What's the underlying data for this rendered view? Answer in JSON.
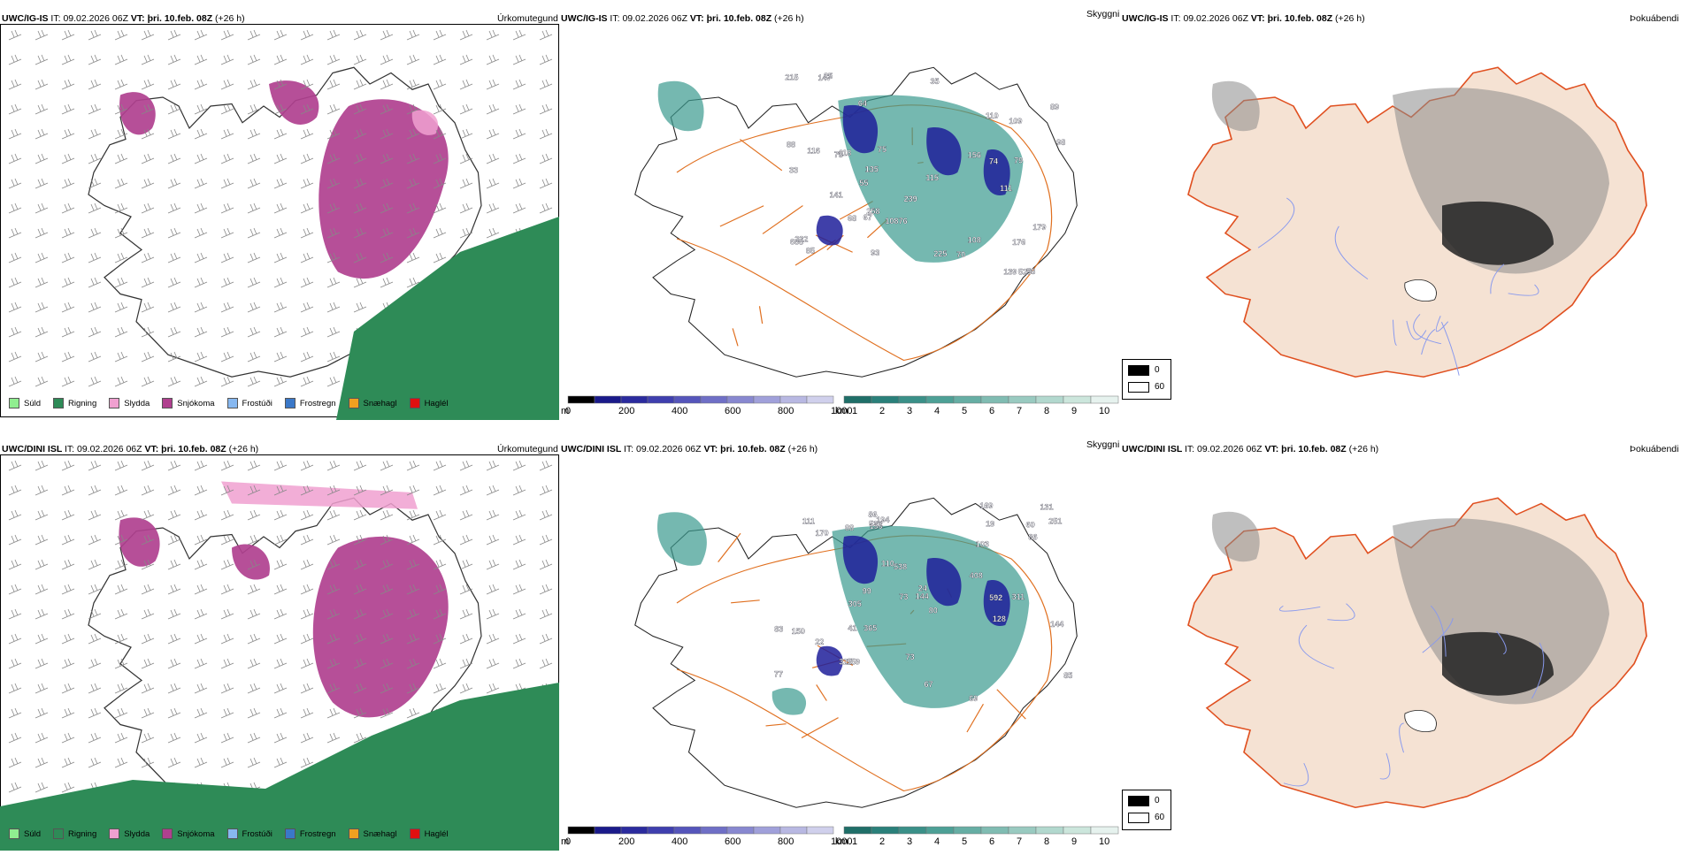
{
  "rows": [
    {
      "model": "UWC/IG-IS",
      "it_label": "IT:",
      "it_value": "09.02.2026 06Z",
      "vt_label": "VT:",
      "vt_value": "þri. 10.feb. 08Z",
      "lead": "(+26 h)"
    },
    {
      "model": "UWC/DINI ISL",
      "it_label": "IT:",
      "it_value": "09.02.2026 06Z",
      "vt_label": "VT:",
      "vt_value": "þri. 10.feb. 08Z",
      "lead": "(+26 h)"
    }
  ],
  "panels": {
    "precip_type": "Úrkomutegund",
    "visibility": "Skyggni",
    "fog": "Þokuábendi"
  },
  "precip_legend": [
    {
      "label": "Súld",
      "color": "#90ee90"
    },
    {
      "label": "Rigning",
      "color": "#2e8b57"
    },
    {
      "label": "Slydda",
      "color": "#f0a0d0"
    },
    {
      "label": "Snjókoma",
      "color": "#b0408f"
    },
    {
      "label": "Frostúði",
      "color": "#87b8f0"
    },
    {
      "label": "Frostregn",
      "color": "#3a78c8"
    },
    {
      "label": "Snæhagl",
      "color": "#f0a020"
    },
    {
      "label": "Haglél",
      "color": "#e01010"
    }
  ],
  "vis_m_scale": {
    "unit": "m",
    "ticks": [
      "0",
      "200",
      "400",
      "600",
      "800",
      "1000"
    ]
  },
  "vis_km_scale": {
    "unit": "km",
    "ticks": [
      "1",
      "2",
      "3",
      "4",
      "5",
      "6",
      "7",
      "8",
      "9",
      "10"
    ]
  },
  "fog_scale": {
    "ticks": [
      "0",
      "60"
    ]
  },
  "colors": {
    "snow": "#b0408f",
    "rain": "#2e8b57",
    "sleet": "#f0a0d0",
    "land_fog": "#f5e2d3",
    "roads": "#e07020",
    "vis_teal": "#3a9a8e",
    "vis_blue": "#1e1e9a"
  },
  "vis_labels": {
    "top": [
      "239",
      "78",
      "147",
      "111",
      "58",
      "64",
      "76",
      "55",
      "67",
      "74",
      "79",
      "35",
      "215",
      "139",
      "135",
      "108",
      "115",
      "98",
      "89",
      "75",
      "529",
      "418",
      "70",
      "68",
      "176",
      "156",
      "225",
      "222",
      "109",
      "685",
      "258",
      "108",
      "85",
      "179",
      "110",
      "88",
      "116",
      "25",
      "141",
      "93",
      "33"
    ],
    "bottom": [
      "144",
      "83",
      "111",
      "99",
      "69",
      "86",
      "77",
      "85",
      "128",
      "131",
      "365",
      "150",
      "110",
      "144",
      "22",
      "169",
      "88",
      "86",
      "305",
      "80",
      "251",
      "194",
      "170",
      "155",
      "532",
      "538",
      "311",
      "67",
      "408",
      "592",
      "159",
      "41",
      "73",
      "60",
      "24",
      "325",
      "103",
      "19",
      "73"
    ]
  }
}
